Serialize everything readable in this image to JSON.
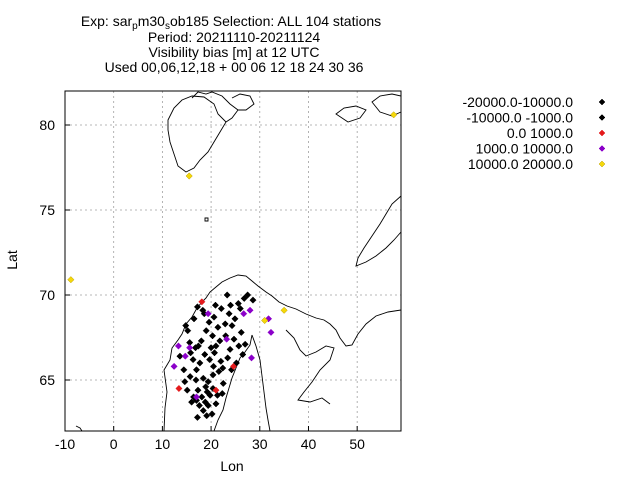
{
  "chart_data": {
    "type": "scatter",
    "title_lines": [
      "Exp: sar",
      "Period: 20211110-20211124",
      "Visibility bias [m] at  12 UTC",
      "Used 00,06,12,18 + 00 06 12 18 24 30 36"
    ],
    "title_parts": {
      "prefix": "Exp: sar",
      "sub1": "p",
      "mid": "m30",
      "sub2": "s",
      "suffix": "ob185   Selection: ALL    104 stations"
    },
    "xlabel": "Lon",
    "ylabel": "Lat",
    "xlim": [
      -10,
      59
    ],
    "ylim": [
      62,
      82
    ],
    "xticks": [
      -10,
      0,
      10,
      20,
      30,
      40,
      50
    ],
    "yticks": [
      65,
      70,
      75,
      80
    ],
    "grid": true,
    "legend_position": "right",
    "series": [
      {
        "name": "-20000.0-10000.0",
        "color": "#000000",
        "points": []
      },
      {
        "name": "-10000.0 -1000.0",
        "color": "#000000",
        "points": [
          [
            14.8,
            68.2
          ],
          [
            15.6,
            67.2
          ],
          [
            16.5,
            68.6
          ],
          [
            17.2,
            69.3
          ],
          [
            18.3,
            69.1
          ],
          [
            19.6,
            68.4
          ],
          [
            20.6,
            68.7
          ],
          [
            22.1,
            69.2
          ],
          [
            23.7,
            68.9
          ],
          [
            24.3,
            68.2
          ],
          [
            25.6,
            69.5
          ],
          [
            26.8,
            69.8
          ],
          [
            27.5,
            70.0
          ],
          [
            28.6,
            69.7
          ],
          [
            19.0,
            67.9
          ],
          [
            20.3,
            67.6
          ],
          [
            21.8,
            67.3
          ],
          [
            23.0,
            67.6
          ],
          [
            24.7,
            67.4
          ],
          [
            26.2,
            67.8
          ],
          [
            27.0,
            67.1
          ],
          [
            16.3,
            66.2
          ],
          [
            17.7,
            66.0
          ],
          [
            18.7,
            66.5
          ],
          [
            19.7,
            66.2
          ],
          [
            20.7,
            66.6
          ],
          [
            22.0,
            66.1
          ],
          [
            23.4,
            66.3
          ],
          [
            25.2,
            66.0
          ],
          [
            26.5,
            66.5
          ],
          [
            14.4,
            65.6
          ],
          [
            15.7,
            65.2
          ],
          [
            16.9,
            65.0
          ],
          [
            18.4,
            65.1
          ],
          [
            19.4,
            64.9
          ],
          [
            20.4,
            65.3
          ],
          [
            21.6,
            65.5
          ],
          [
            22.4,
            65.7
          ],
          [
            24.2,
            65.6
          ],
          [
            15.1,
            64.4
          ],
          [
            16.4,
            64.0
          ],
          [
            17.3,
            64.4
          ],
          [
            18.1,
            64.0
          ],
          [
            18.8,
            63.7
          ],
          [
            19.8,
            64.1
          ],
          [
            20.4,
            64.5
          ],
          [
            21.3,
            64.1
          ],
          [
            22.3,
            64.2
          ],
          [
            16.0,
            63.7
          ],
          [
            17.6,
            63.5
          ],
          [
            18.4,
            63.2
          ],
          [
            19.4,
            63.5
          ],
          [
            20.2,
            63.0
          ],
          [
            21.0,
            63.6
          ],
          [
            19.1,
            62.9
          ],
          [
            18.9,
            64.6
          ],
          [
            17.0,
            65.6
          ],
          [
            21.0,
            67.0
          ],
          [
            22.9,
            68.3
          ],
          [
            24.9,
            68.6
          ],
          [
            17.4,
            67.0
          ],
          [
            15.8,
            66.6
          ],
          [
            26.0,
            69.2
          ],
          [
            20.9,
            69.4
          ],
          [
            23.3,
            70.0
          ],
          [
            18.6,
            68.9
          ],
          [
            22.5,
            64.8
          ],
          [
            20.0,
            66.9
          ],
          [
            21.4,
            68.1
          ],
          [
            23.9,
            66.8
          ],
          [
            16.8,
            66.9
          ],
          [
            18.0,
            67.3
          ],
          [
            17.0,
            63.8
          ],
          [
            19.2,
            64.3
          ],
          [
            20.5,
            65.8
          ],
          [
            25.7,
            67.0
          ],
          [
            14.6,
            64.9
          ],
          [
            13.6,
            66.4
          ],
          [
            15.2,
            67.9
          ],
          [
            24.0,
            69.4
          ],
          [
            17.2,
            62.8
          ]
        ]
      },
      {
        "name": "0.0 1000.0",
        "color": "#e41a1c",
        "points": [
          [
            18.1,
            69.6
          ],
          [
            13.4,
            64.5
          ],
          [
            24.6,
            65.8
          ],
          [
            21.0,
            64.4
          ]
        ]
      },
      {
        "name": "1000.0 10000.0",
        "color": "#8b00c9",
        "points": [
          [
            19.4,
            68.9
          ],
          [
            15.6,
            66.9
          ],
          [
            14.7,
            66.4
          ],
          [
            12.4,
            65.8
          ],
          [
            13.3,
            67.0
          ],
          [
            17.0,
            64.0
          ],
          [
            26.7,
            68.9
          ],
          [
            28.0,
            69.1
          ],
          [
            31.8,
            68.6
          ],
          [
            32.3,
            67.8
          ],
          [
            28.3,
            66.3
          ],
          [
            23.2,
            67.4
          ]
        ]
      },
      {
        "name": "10000.0 20000.0",
        "color": "#f5d80a",
        "points": [
          [
            15.5,
            77.0
          ],
          [
            -8.8,
            70.9
          ],
          [
            35.0,
            69.1
          ],
          [
            57.5,
            80.6
          ],
          [
            31.0,
            68.5
          ]
        ]
      }
    ]
  }
}
